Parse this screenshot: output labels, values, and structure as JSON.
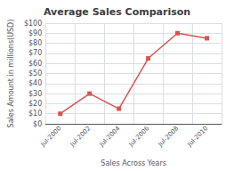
{
  "chart_data": {
    "type": "line",
    "title": "Average Sales Comparison",
    "xlabel": "Sales Across Years",
    "ylabel": "Sales Amount in millions(USD)",
    "categories": [
      "Jul-2000",
      "Jul-2002",
      "Jul-2004",
      "Jul-2006",
      "Jul-2008",
      "Jul-2010"
    ],
    "values": [
      10,
      30,
      15,
      65,
      90,
      85
    ],
    "color": "#d9534f",
    "marker": "square",
    "ylim": [
      0,
      100
    ],
    "yticks": [
      {
        "value": 0,
        "label": "$0"
      },
      {
        "value": 10,
        "label": "$10"
      },
      {
        "value": 20,
        "label": "$20"
      },
      {
        "value": 30,
        "label": "$30"
      },
      {
        "value": 40,
        "label": "$40"
      },
      {
        "value": 50,
        "label": "$50"
      },
      {
        "value": 60,
        "label": "$60"
      },
      {
        "value": 70,
        "label": "$70"
      },
      {
        "value": 80,
        "label": "$80"
      },
      {
        "value": 90,
        "label": "$90"
      },
      {
        "value": 100,
        "label": "$100"
      }
    ],
    "grid": true
  }
}
